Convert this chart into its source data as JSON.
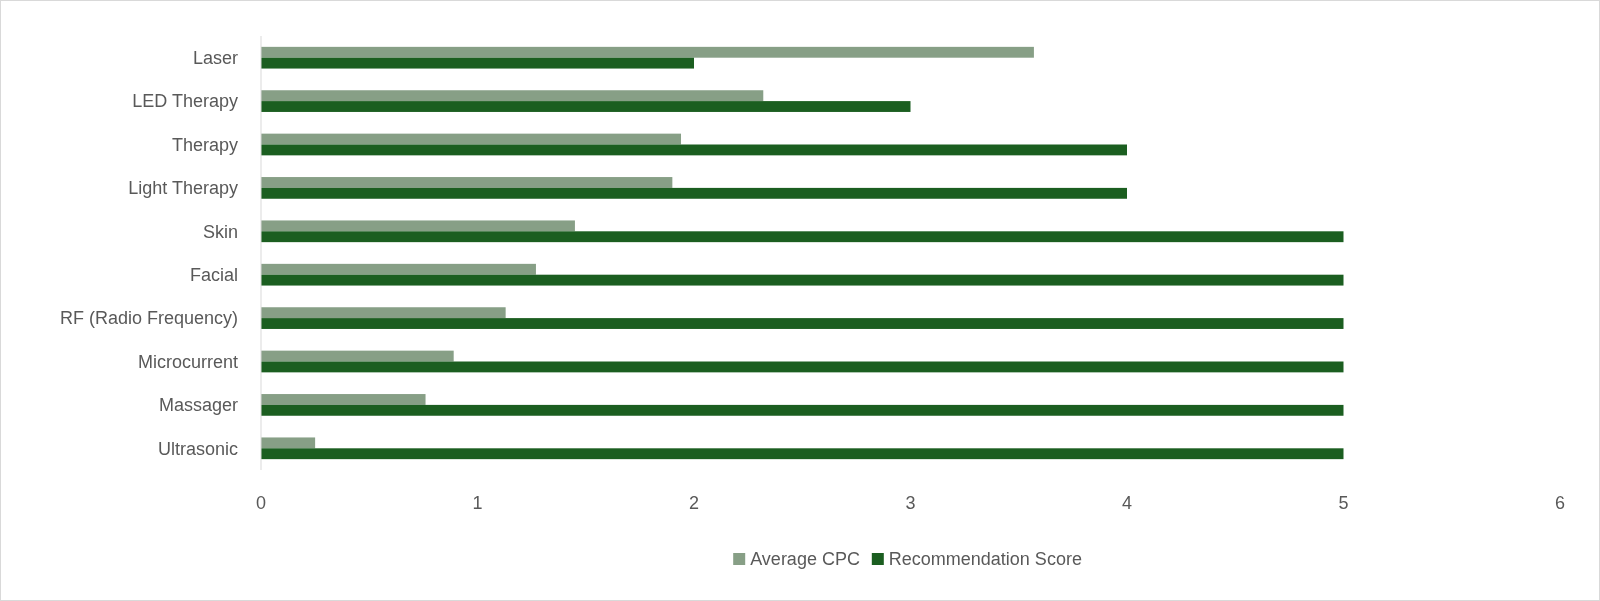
{
  "chart_data": {
    "type": "bar",
    "orientation": "horizontal",
    "categories": [
      "Laser",
      "LED Therapy",
      "Therapy",
      "Light Therapy",
      "Skin",
      "Facial",
      "RF (Radio Frequency)",
      "Microcurrent",
      "Massager",
      "Ultrasonic"
    ],
    "series": [
      {
        "name": "Average CPC",
        "color": "#879f86",
        "values": [
          3.57,
          2.32,
          1.94,
          1.9,
          1.45,
          1.27,
          1.13,
          0.89,
          0.76,
          0.25
        ]
      },
      {
        "name": "Recommendation Score",
        "color": "#1b5e20",
        "values": [
          2,
          3,
          4,
          4,
          5,
          5,
          5,
          5,
          5,
          5
        ]
      }
    ],
    "xlim": [
      0,
      6
    ],
    "xticks": [
      0,
      1,
      2,
      3,
      4,
      5,
      6
    ],
    "grid": false,
    "legend": "bottom"
  }
}
